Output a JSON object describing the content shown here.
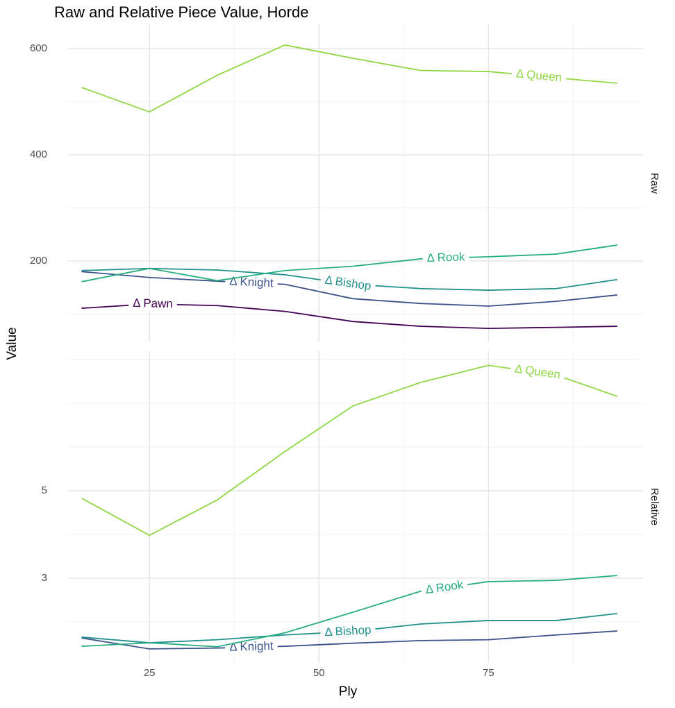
{
  "title": "Raw and Relative Piece Value, Horde",
  "xlabel": "Ply",
  "ylabel": "Value",
  "chart_data": [
    {
      "type": "line",
      "facet": "Raw",
      "x": [
        15,
        25,
        35,
        45,
        55,
        65,
        75,
        85,
        94
      ],
      "xlim": [
        12.9,
        97.8
      ],
      "xticks": [
        25,
        50,
        75
      ],
      "xminor": [
        37.5,
        62.5,
        87.5
      ],
      "ylim": [
        47,
        646
      ],
      "yticks": [
        200,
        400,
        600
      ],
      "yminor": [
        100,
        300,
        500
      ],
      "grid": true,
      "series": [
        {
          "name": "Δ Pawn",
          "color": "#440154",
          "values": [
            111,
            119,
            116,
            105,
            86,
            77,
            73,
            75,
            77
          ]
        },
        {
          "name": "Δ Knight",
          "color": "#3b528b",
          "values": [
            180,
            169,
            162,
            156,
            129,
            120,
            115,
            124,
            136
          ]
        },
        {
          "name": "Δ Bishop",
          "color": "#21908c",
          "values": [
            182,
            186,
            183,
            174,
            156,
            148,
            145,
            148,
            165
          ]
        },
        {
          "name": "Δ Rook",
          "color": "#27ad81",
          "values": [
            161,
            186,
            163,
            182,
            190,
            204,
            208,
            213,
            230
          ]
        },
        {
          "name": "Δ Queen",
          "color": "#8fd744",
          "values": [
            527,
            481,
            550,
            607,
            582,
            559,
            557,
            545,
            535
          ]
        }
      ]
    },
    {
      "type": "line",
      "facet": "Relative",
      "x": [
        15,
        25,
        35,
        45,
        55,
        65,
        75,
        85,
        94
      ],
      "xlim": [
        12.9,
        97.8
      ],
      "xticks": [
        25,
        50,
        75
      ],
      "xminor": [
        37.5,
        62.5,
        87.5
      ],
      "ylim": [
        1.06,
        8.21
      ],
      "yticks": [
        3,
        5
      ],
      "yminor": [
        2,
        4,
        6,
        7,
        8
      ],
      "grid": true,
      "series": [
        {
          "name": "Δ Knight",
          "color": "#3b528b",
          "values": [
            1.63,
            1.38,
            1.4,
            1.44,
            1.51,
            1.57,
            1.59,
            1.7,
            1.79
          ]
        },
        {
          "name": "Δ Bishop",
          "color": "#21908c",
          "values": [
            1.65,
            1.52,
            1.59,
            1.7,
            1.78,
            1.95,
            2.03,
            2.03,
            2.19
          ]
        },
        {
          "name": "Δ Rook",
          "color": "#27ad81",
          "values": [
            1.44,
            1.52,
            1.43,
            1.75,
            2.22,
            2.7,
            2.92,
            2.95,
            3.06
          ]
        },
        {
          "name": "Δ Queen",
          "color": "#8fd744",
          "values": [
            4.83,
            3.98,
            4.79,
            5.9,
            6.94,
            7.48,
            7.87,
            7.65,
            7.16
          ]
        }
      ]
    }
  ]
}
